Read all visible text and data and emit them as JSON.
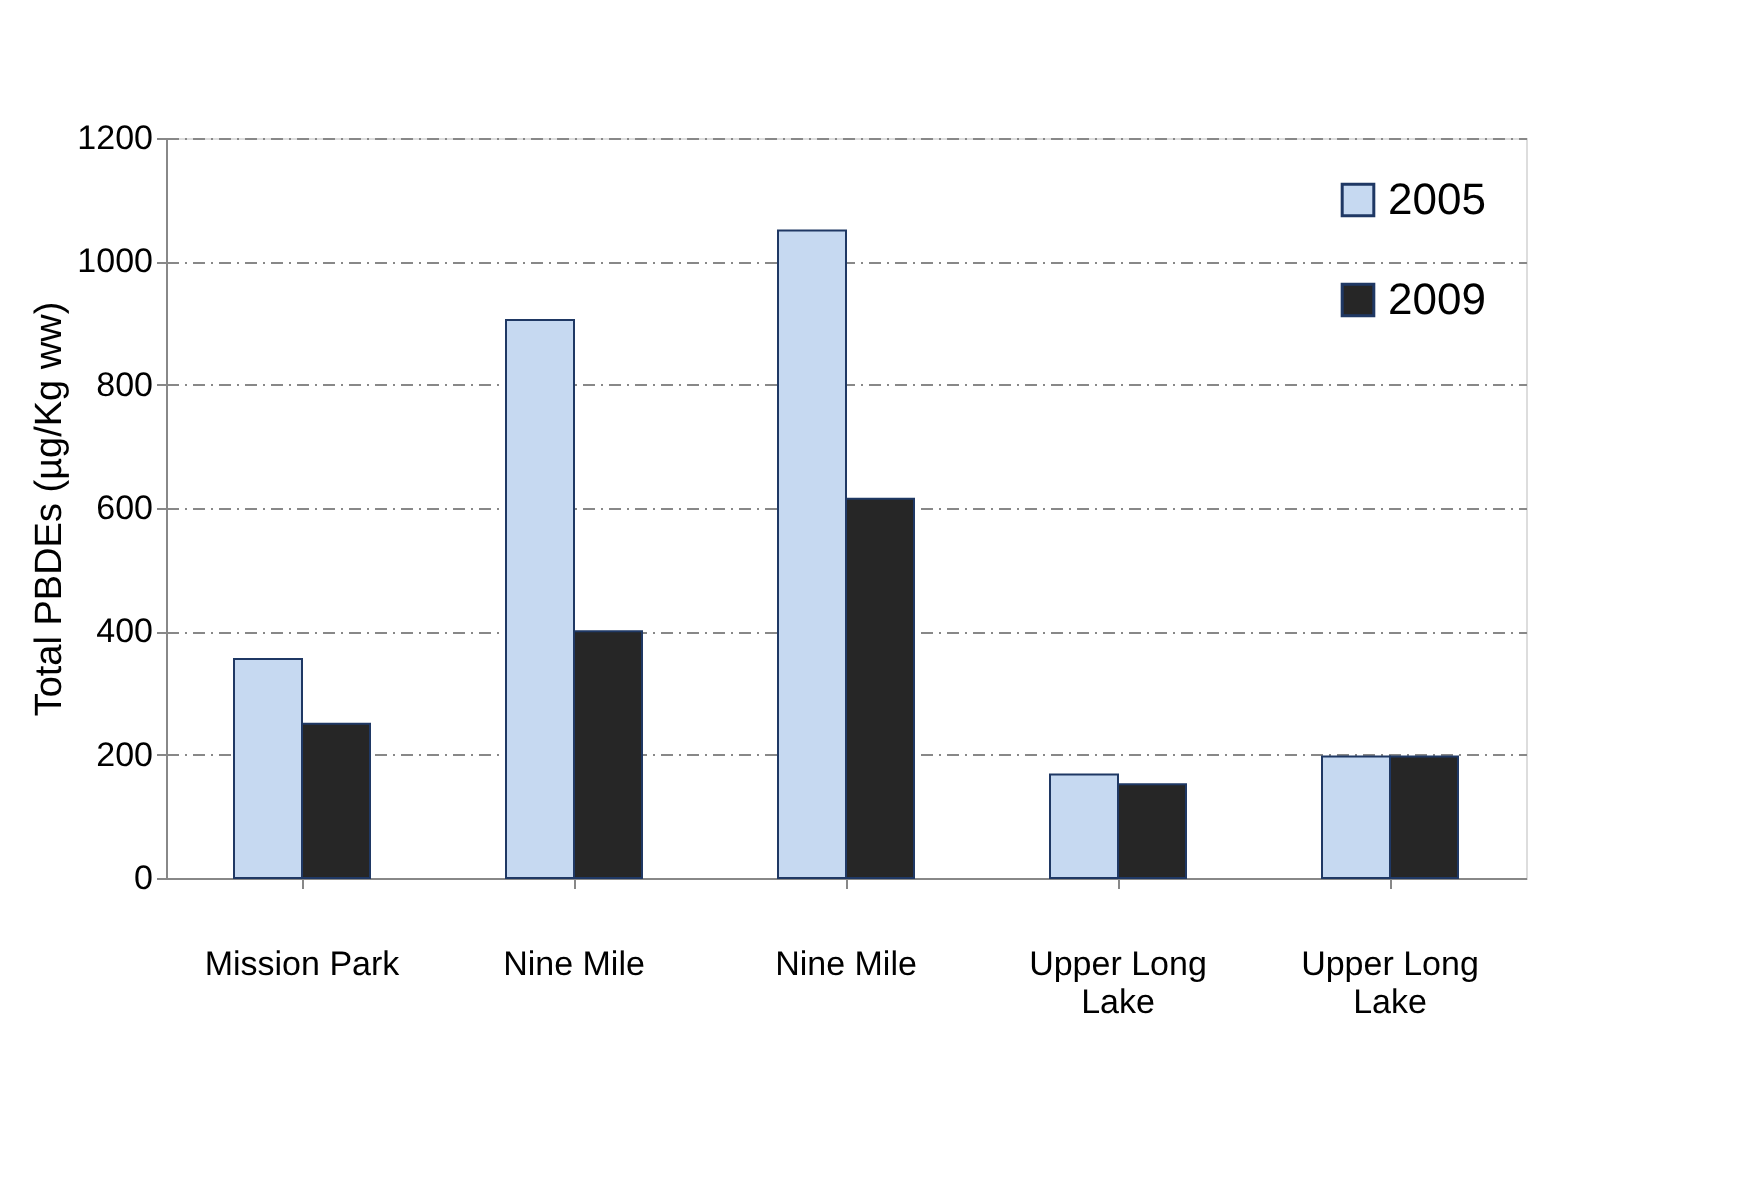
{
  "chart_data": {
    "type": "bar",
    "ylabel": "Total PBDEs (µg/Kg ww)",
    "categories": [
      "Mission Park",
      "Nine Mile",
      "Nine Mile",
      "Upper Long Lake",
      "Upper Long Lake"
    ],
    "series": [
      {
        "name": "2005",
        "color": "#c6d9f1",
        "values": [
          355,
          905,
          1050,
          168,
          197
        ]
      },
      {
        "name": "2009",
        "color": "#262626",
        "values": [
          250,
          400,
          615,
          152,
          197
        ]
      }
    ],
    "ylim": [
      0,
      1200
    ],
    "yticks": [
      0,
      200,
      400,
      600,
      800,
      1000,
      1200
    ],
    "grid": "y",
    "legend": "top right"
  }
}
